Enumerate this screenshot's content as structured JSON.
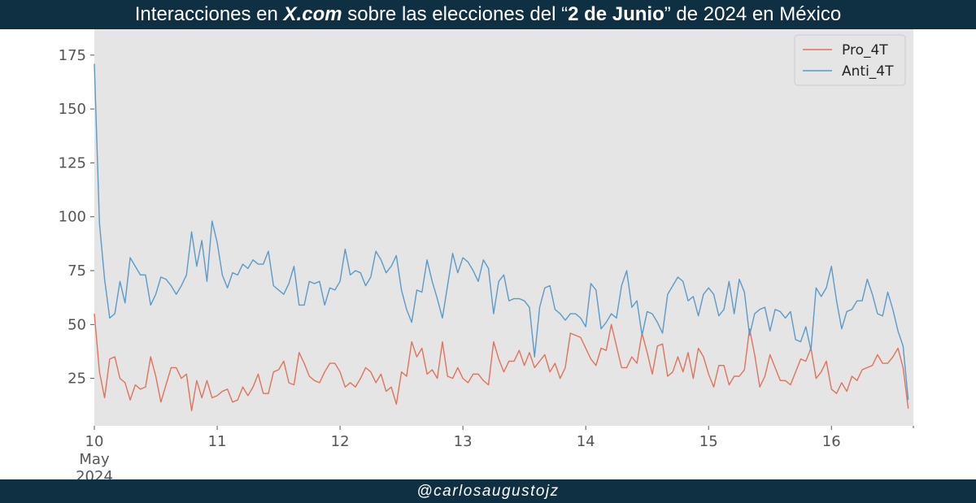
{
  "title": {
    "part1": "Interacciones en ",
    "part2": "X.com",
    "part3": " sobre las elecciones del “",
    "part4": "2 de Junio",
    "part5": "” de 2024 en México"
  },
  "footer": {
    "handle": "@carlosaugustojz"
  },
  "colors": {
    "header_bg": "#0f2f43",
    "plot_bg": "#e5e5e5",
    "pro": "#e2725b",
    "anti": "#5b9ac9"
  },
  "chart_data": {
    "type": "line",
    "x_start": "2024-05-10 00:00",
    "x_end": "2024-05-16 16:00",
    "x_step_hours": 1,
    "xlim_days": [
      10,
      16.667
    ],
    "ylim": [
      3,
      187
    ],
    "grid": false,
    "legend_position": "top-right",
    "x_ticks": [
      {
        "value": 10,
        "label": "10",
        "sub1": "May",
        "sub2": "2024"
      },
      {
        "value": 11,
        "label": "11"
      },
      {
        "value": 12,
        "label": "12"
      },
      {
        "value": 13,
        "label": "13"
      },
      {
        "value": 14,
        "label": "14"
      },
      {
        "value": 15,
        "label": "15"
      },
      {
        "value": 16,
        "label": "16"
      }
    ],
    "y_ticks": [
      25,
      50,
      75,
      100,
      125,
      150,
      175
    ],
    "series": [
      {
        "name": "Pro_4T",
        "color": "#e2725b",
        "values": [
          55,
          28,
          16,
          34,
          35,
          25,
          23,
          15,
          22,
          20,
          21,
          35,
          26,
          14,
          22,
          30,
          30,
          25,
          27,
          10,
          24,
          16,
          24,
          16,
          17,
          19,
          20,
          14,
          15,
          21,
          17,
          21,
          27,
          18,
          18,
          28,
          29,
          33,
          23,
          22,
          37,
          32,
          26,
          24,
          23,
          28,
          32,
          32,
          28,
          21,
          23,
          21,
          25,
          30,
          28,
          23,
          27,
          19,
          21,
          13,
          28,
          26,
          42,
          35,
          39,
          27,
          29,
          25,
          42,
          26,
          25,
          30,
          25,
          23,
          27,
          27,
          24,
          22,
          42,
          34,
          28,
          33,
          33,
          38,
          31,
          37,
          30,
          33,
          36,
          28,
          32,
          25,
          30,
          46,
          45,
          44,
          39,
          34,
          31,
          39,
          38,
          50,
          40,
          30,
          30,
          35,
          32,
          46,
          37,
          27,
          40,
          41,
          26,
          28,
          35,
          28,
          37,
          25,
          39,
          35,
          27,
          21,
          31,
          31,
          22,
          26,
          26,
          29,
          48,
          36,
          21,
          26,
          36,
          30,
          24,
          24,
          22,
          28,
          34,
          33,
          39,
          25,
          28,
          33,
          20,
          18,
          23,
          19,
          26,
          24,
          29,
          30,
          31,
          36,
          32,
          32,
          35,
          39,
          30,
          11
        ]
      },
      {
        "name": "Anti_4T",
        "color": "#5b9ac9",
        "values": [
          171,
          97,
          71,
          53,
          55,
          70,
          60,
          81,
          77,
          73,
          73,
          59,
          64,
          72,
          71,
          68,
          64,
          68,
          73,
          93,
          77,
          89,
          70,
          98,
          88,
          73,
          67,
          74,
          73,
          78,
          76,
          80,
          78,
          78,
          84,
          68,
          66,
          64,
          69,
          77,
          59,
          59,
          70,
          69,
          70,
          59,
          67,
          66,
          70,
          85,
          73,
          75,
          74,
          68,
          72,
          84,
          80,
          74,
          77,
          82,
          66,
          57,
          51,
          66,
          65,
          80,
          70,
          62,
          53,
          68,
          83,
          74,
          81,
          79,
          75,
          70,
          80,
          76,
          55,
          70,
          73,
          61,
          62,
          62,
          61,
          58,
          35,
          58,
          67,
          68,
          57,
          55,
          52,
          55,
          55,
          53,
          49,
          69,
          66,
          48,
          51,
          55,
          53,
          68,
          75,
          58,
          61,
          45,
          56,
          55,
          51,
          46,
          64,
          68,
          72,
          70,
          61,
          63,
          54,
          64,
          67,
          64,
          54,
          57,
          70,
          55,
          71,
          65,
          45,
          55,
          57,
          58,
          47,
          57,
          56,
          53,
          56,
          43,
          42,
          49,
          38,
          67,
          63,
          67,
          77,
          61,
          48,
          56,
          57,
          61,
          61,
          71,
          64,
          55,
          54,
          65,
          57,
          47,
          40,
          15
        ]
      }
    ]
  }
}
